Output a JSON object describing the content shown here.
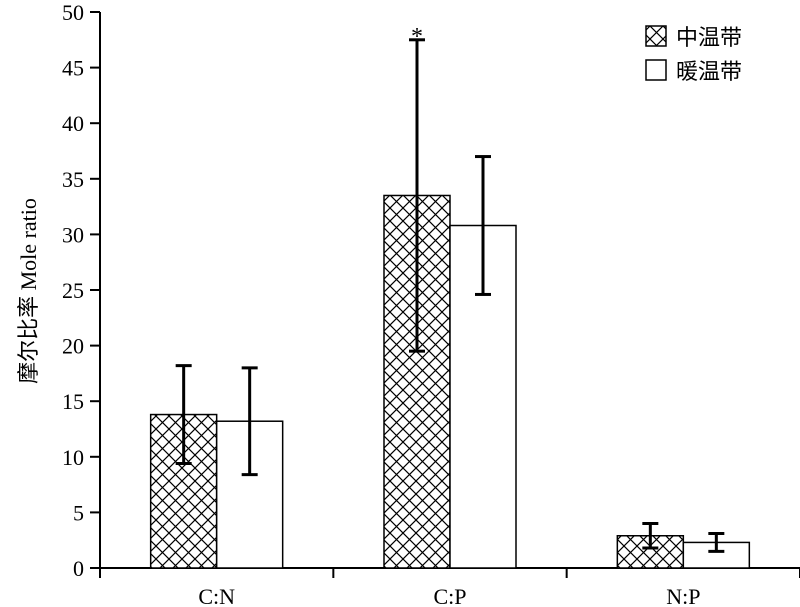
{
  "chart_data": {
    "type": "bar",
    "ylabel": "摩尔比率 Mole ratio",
    "ylim": [
      0,
      50
    ],
    "yticks": [
      0,
      5,
      10,
      15,
      20,
      25,
      30,
      35,
      40,
      45,
      50
    ],
    "categories": [
      "C:N",
      "C:P",
      "N:P"
    ],
    "series": [
      {
        "name": "中温带",
        "pattern": "crosshatch",
        "values": [
          13.8,
          33.5,
          2.9
        ],
        "errors": [
          4.4,
          14.0,
          1.1
        ]
      },
      {
        "name": "暖温带",
        "pattern": "plain",
        "values": [
          13.2,
          30.8,
          2.3
        ],
        "errors": [
          4.8,
          6.2,
          0.8
        ]
      }
    ],
    "annotations": [
      {
        "text": "*",
        "category": "C:P",
        "series": 0
      }
    ],
    "legend_position": "top-right",
    "grid": false
  }
}
